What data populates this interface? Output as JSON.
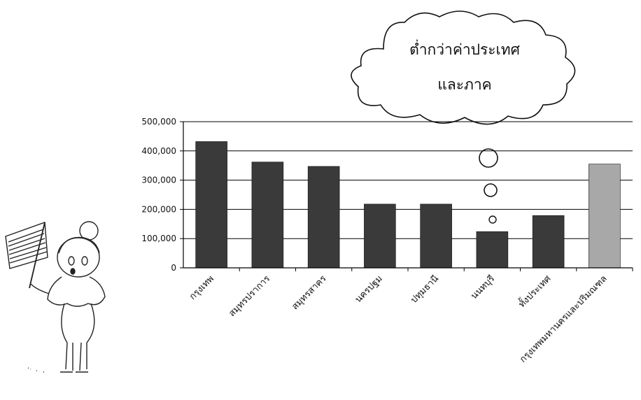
{
  "chart_data": {
    "type": "bar",
    "categories": [
      "กรุงเทพ",
      "สมุทรปราการ",
      "สมุทรสาคร",
      "นครปฐม",
      "ปทุมธานี",
      "นนทบุรี",
      "ทั้งประเทศ",
      "กรุงเทพมหานครและปริมณฑล"
    ],
    "values": [
      432000,
      362000,
      347000,
      218000,
      218000,
      124000,
      179000,
      355000
    ],
    "ylim": [
      0,
      500000
    ],
    "yticks": [
      0,
      100000,
      200000,
      300000,
      400000,
      500000
    ],
    "ytick_labels": [
      "0",
      "100,000",
      "200,000",
      "300,000",
      "400,000",
      "500,000"
    ],
    "grid": true,
    "highlight_last": true,
    "title": "",
    "xlabel": "",
    "ylabel": ""
  },
  "annotation": {
    "line1": "ต่ำกว่าค่าประเทศ",
    "line2": "และภาค"
  },
  "colors": {
    "bar": "#3a3a3a",
    "bar_highlight": "#a8a8a8",
    "axis": "#000000",
    "grid": "#000000"
  }
}
